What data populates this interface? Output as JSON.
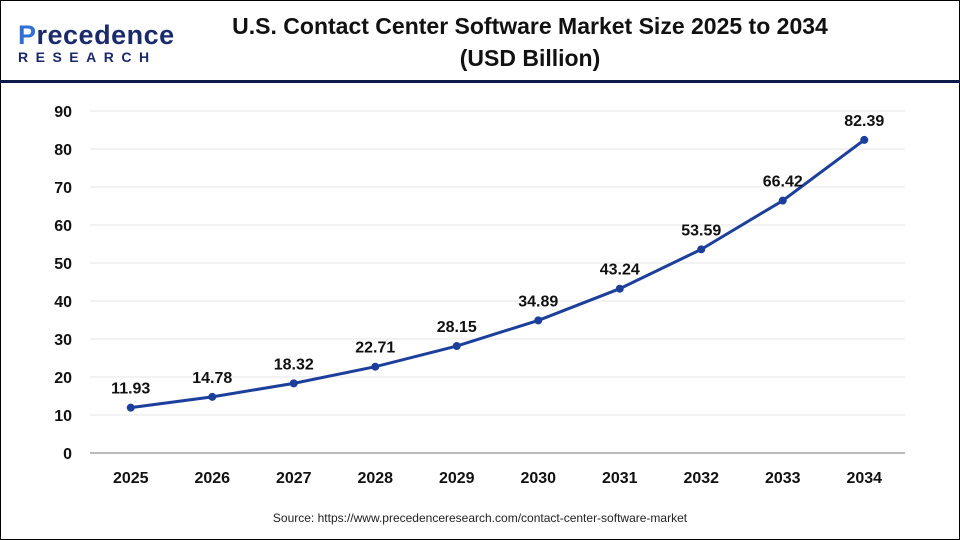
{
  "logo": {
    "line1_a": "P",
    "line1_b": "recedence",
    "line2": "RESEARCH"
  },
  "title_line1": "U.S. Contact Center Software Market Size 2025 to 2034",
  "title_line2": "(USD Billion)",
  "source": "Source: https://www.precedenceresearch.com/contact-center-software-market",
  "colors": {
    "line": "#1c3f9c",
    "header_rule": "#0d1a4a",
    "grid": "#e6e6e6"
  },
  "chart_data": {
    "type": "line",
    "title": "U.S. Contact Center Software Market Size 2025 to 2034 (USD Billion)",
    "categories": [
      "2025",
      "2026",
      "2027",
      "2028",
      "2029",
      "2030",
      "2031",
      "2032",
      "2033",
      "2034"
    ],
    "values": [
      11.93,
      14.78,
      18.32,
      22.71,
      28.15,
      34.89,
      43.24,
      53.59,
      66.42,
      82.39
    ],
    "data_labels": [
      "11.93",
      "14.78",
      "18.32",
      "22.71",
      "28.15",
      "34.89",
      "43.24",
      "53.59",
      "66.42",
      "82.39"
    ],
    "yticks": [
      0,
      10,
      20,
      30,
      40,
      50,
      60,
      70,
      80,
      90
    ],
    "ylim": [
      0,
      90
    ],
    "grid": true,
    "xlabel": "",
    "ylabel": ""
  }
}
